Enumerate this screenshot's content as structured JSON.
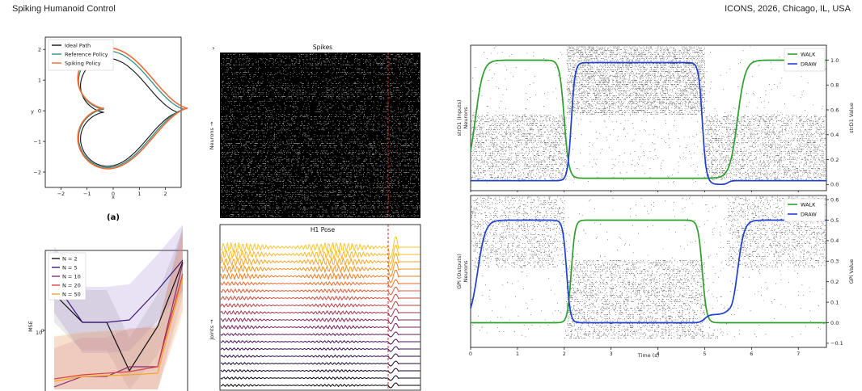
{
  "header": {
    "left": "Spiking Humanoid Control",
    "right": "ICONS, 2026, Chicago, IL, USA"
  },
  "chart_data": [
    {
      "id": "trajectory",
      "type": "line",
      "xlabel": "x",
      "ylabel": "y",
      "xlim": [
        -2.6,
        2.6
      ],
      "ylim": [
        -2.5,
        2.4
      ],
      "xticks": [
        "−2",
        "−1",
        "0",
        "1",
        "2"
      ],
      "yticks": [
        "−2",
        "−1",
        "0",
        "1",
        "2"
      ],
      "caption": "(a)",
      "legend": [
        "Ideal Path",
        "Reference Policy",
        "Spiking Policy"
      ],
      "colors": [
        "#111111",
        "#2f8f8a",
        "#f06a33"
      ]
    },
    {
      "id": "mse",
      "type": "line",
      "ylabel": "MSE",
      "ytick": "10",
      "ytick_exp": "0",
      "scale": "log",
      "legend": [
        "N = 2",
        "N = 5",
        "N = 10",
        "N = 20",
        "N = 50"
      ],
      "colors": [
        "#111111",
        "#3d1a78",
        "#8a2a6e",
        "#d8463a",
        "#f5a623"
      ]
    },
    {
      "id": "spikes",
      "type": "heatmap",
      "title": "Spikes",
      "ylabel": "Neurons →",
      "marker_color": "#d62728"
    },
    {
      "id": "pose",
      "type": "line",
      "title": "H1 Pose",
      "ylabel": "Joints →",
      "n_traces": 20
    },
    {
      "id": "strd1",
      "type": "line",
      "ylabel_left": "strD1 (Inputs)",
      "ylabel_left2": "Neurons",
      "ylabel_right": "strD1 Value",
      "yticks_right": [
        "0.0",
        "0.2",
        "0.4",
        "0.6",
        "0.8",
        "1.0"
      ],
      "ylim": [
        -0.05,
        1.12
      ],
      "series": [
        {
          "name": "WALK",
          "color": "#2ca02c"
        },
        {
          "name": "DRAW",
          "color": "#1f3fd1"
        }
      ]
    },
    {
      "id": "gpi",
      "type": "line",
      "ylabel_left": "GPi (Outputs)",
      "ylabel_left2": "Neurons",
      "ylabel_right": "GPi Value",
      "yticks_right": [
        "−0.1",
        "0.0",
        "0.1",
        "0.2",
        "0.3",
        "0.4",
        "0.5",
        "0.6"
      ],
      "ylim": [
        -0.12,
        0.62
      ],
      "xlabel": "Time (s)",
      "xticks": [
        "0",
        "1",
        "2",
        "3",
        "4",
        "5",
        "6",
        "7"
      ],
      "xlim": [
        0,
        7.6
      ],
      "series": [
        {
          "name": "WALK",
          "color": "#2ca02c"
        },
        {
          "name": "DRAW",
          "color": "#1f3fd1"
        }
      ]
    }
  ]
}
